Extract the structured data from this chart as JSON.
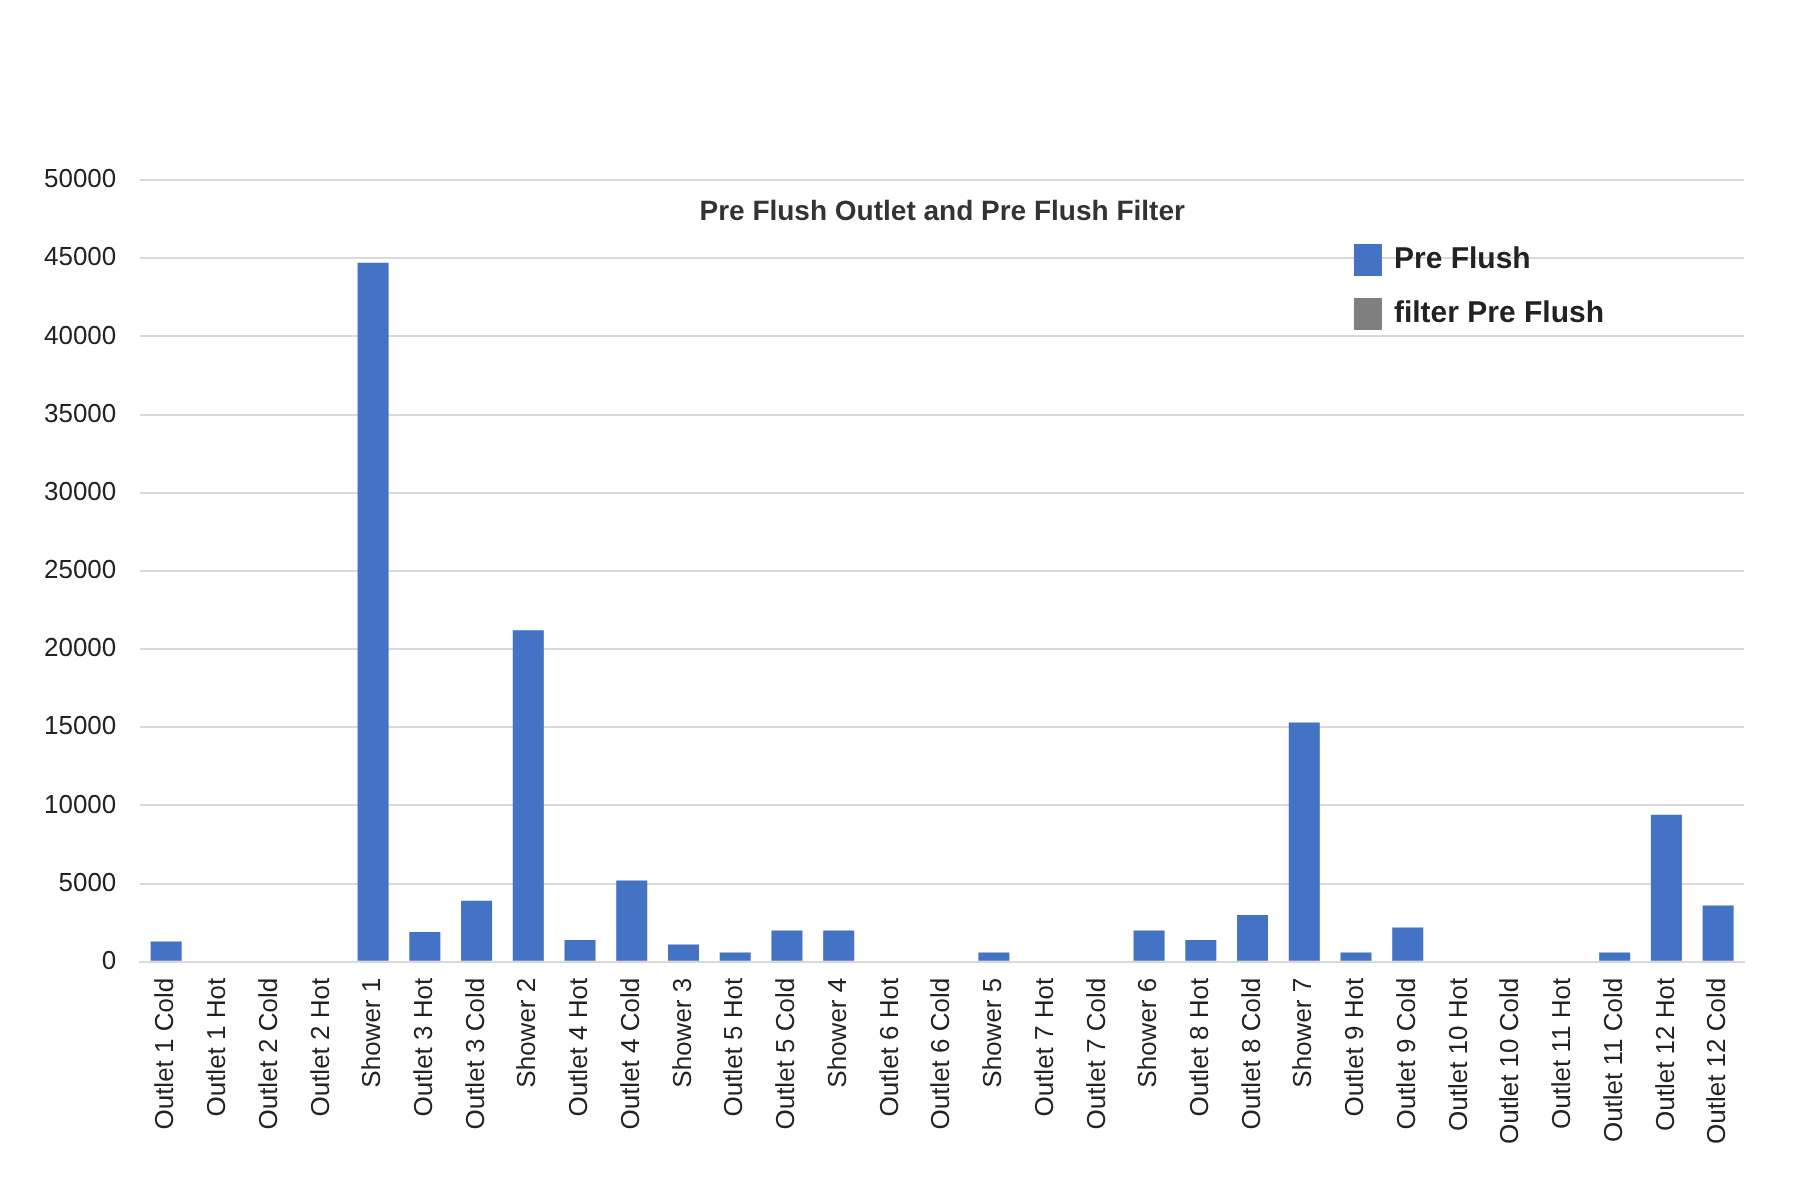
{
  "chart_data": {
    "type": "bar",
    "title": "Pre Flush Outlet and Pre Flush Filter",
    "categories": [
      "Outlet 1 Cold",
      "Outlet 1 Hot",
      "Outlet 2 Cold",
      "Outlet 2 Hot",
      "Shower 1",
      "Outlet 3 Hot",
      "Outlet 3 Cold",
      "Shower 2",
      "Outlet 4 Hot",
      "Outlet 4 Cold",
      "Shower 3",
      "Outlet 5 Hot",
      "Outlet 5 Cold",
      "Shower 4",
      "Outlet 6 Hot",
      "Outlet 6 Cold",
      "Shower 5",
      "Outlet 7 Hot",
      "Outlet 7 Cold",
      "Shower 6",
      "Outlet 8 Hot",
      "Outlet 8 Cold",
      "Shower 7",
      "Outlet 9 Hot",
      "Outlet 9 Cold",
      "Outlet 10 Hot",
      "Outlet 10 Cold",
      "Outlet 11 Hot",
      "Outlet 11 Cold",
      "Outlet 12 Hot",
      "Outlet 12 Cold"
    ],
    "series": [
      {
        "name": "Pre Flush",
        "color": "#4472c4",
        "values": [
          1300,
          null,
          null,
          null,
          44700,
          1900,
          3900,
          21200,
          1400,
          5200,
          1100,
          600,
          2000,
          2000,
          null,
          null,
          600,
          null,
          null,
          2000,
          1400,
          3000,
          15300,
          600,
          2200,
          null,
          null,
          null,
          600,
          9400,
          3600
        ]
      },
      {
        "name": "filter Pre Flush",
        "color": "#7f7f7f",
        "values": [
          null,
          null,
          null,
          null,
          null,
          null,
          null,
          null,
          null,
          null,
          null,
          null,
          null,
          null,
          null,
          null,
          null,
          null,
          null,
          null,
          null,
          null,
          null,
          null,
          null,
          null,
          null,
          null,
          null,
          null,
          null
        ]
      }
    ],
    "ylim": [
      0,
      50000
    ],
    "yticks": [
      0,
      5000,
      10000,
      15000,
      20000,
      25000,
      30000,
      35000,
      40000,
      45000,
      50000
    ],
    "grid": "y",
    "legend": "top right"
  }
}
